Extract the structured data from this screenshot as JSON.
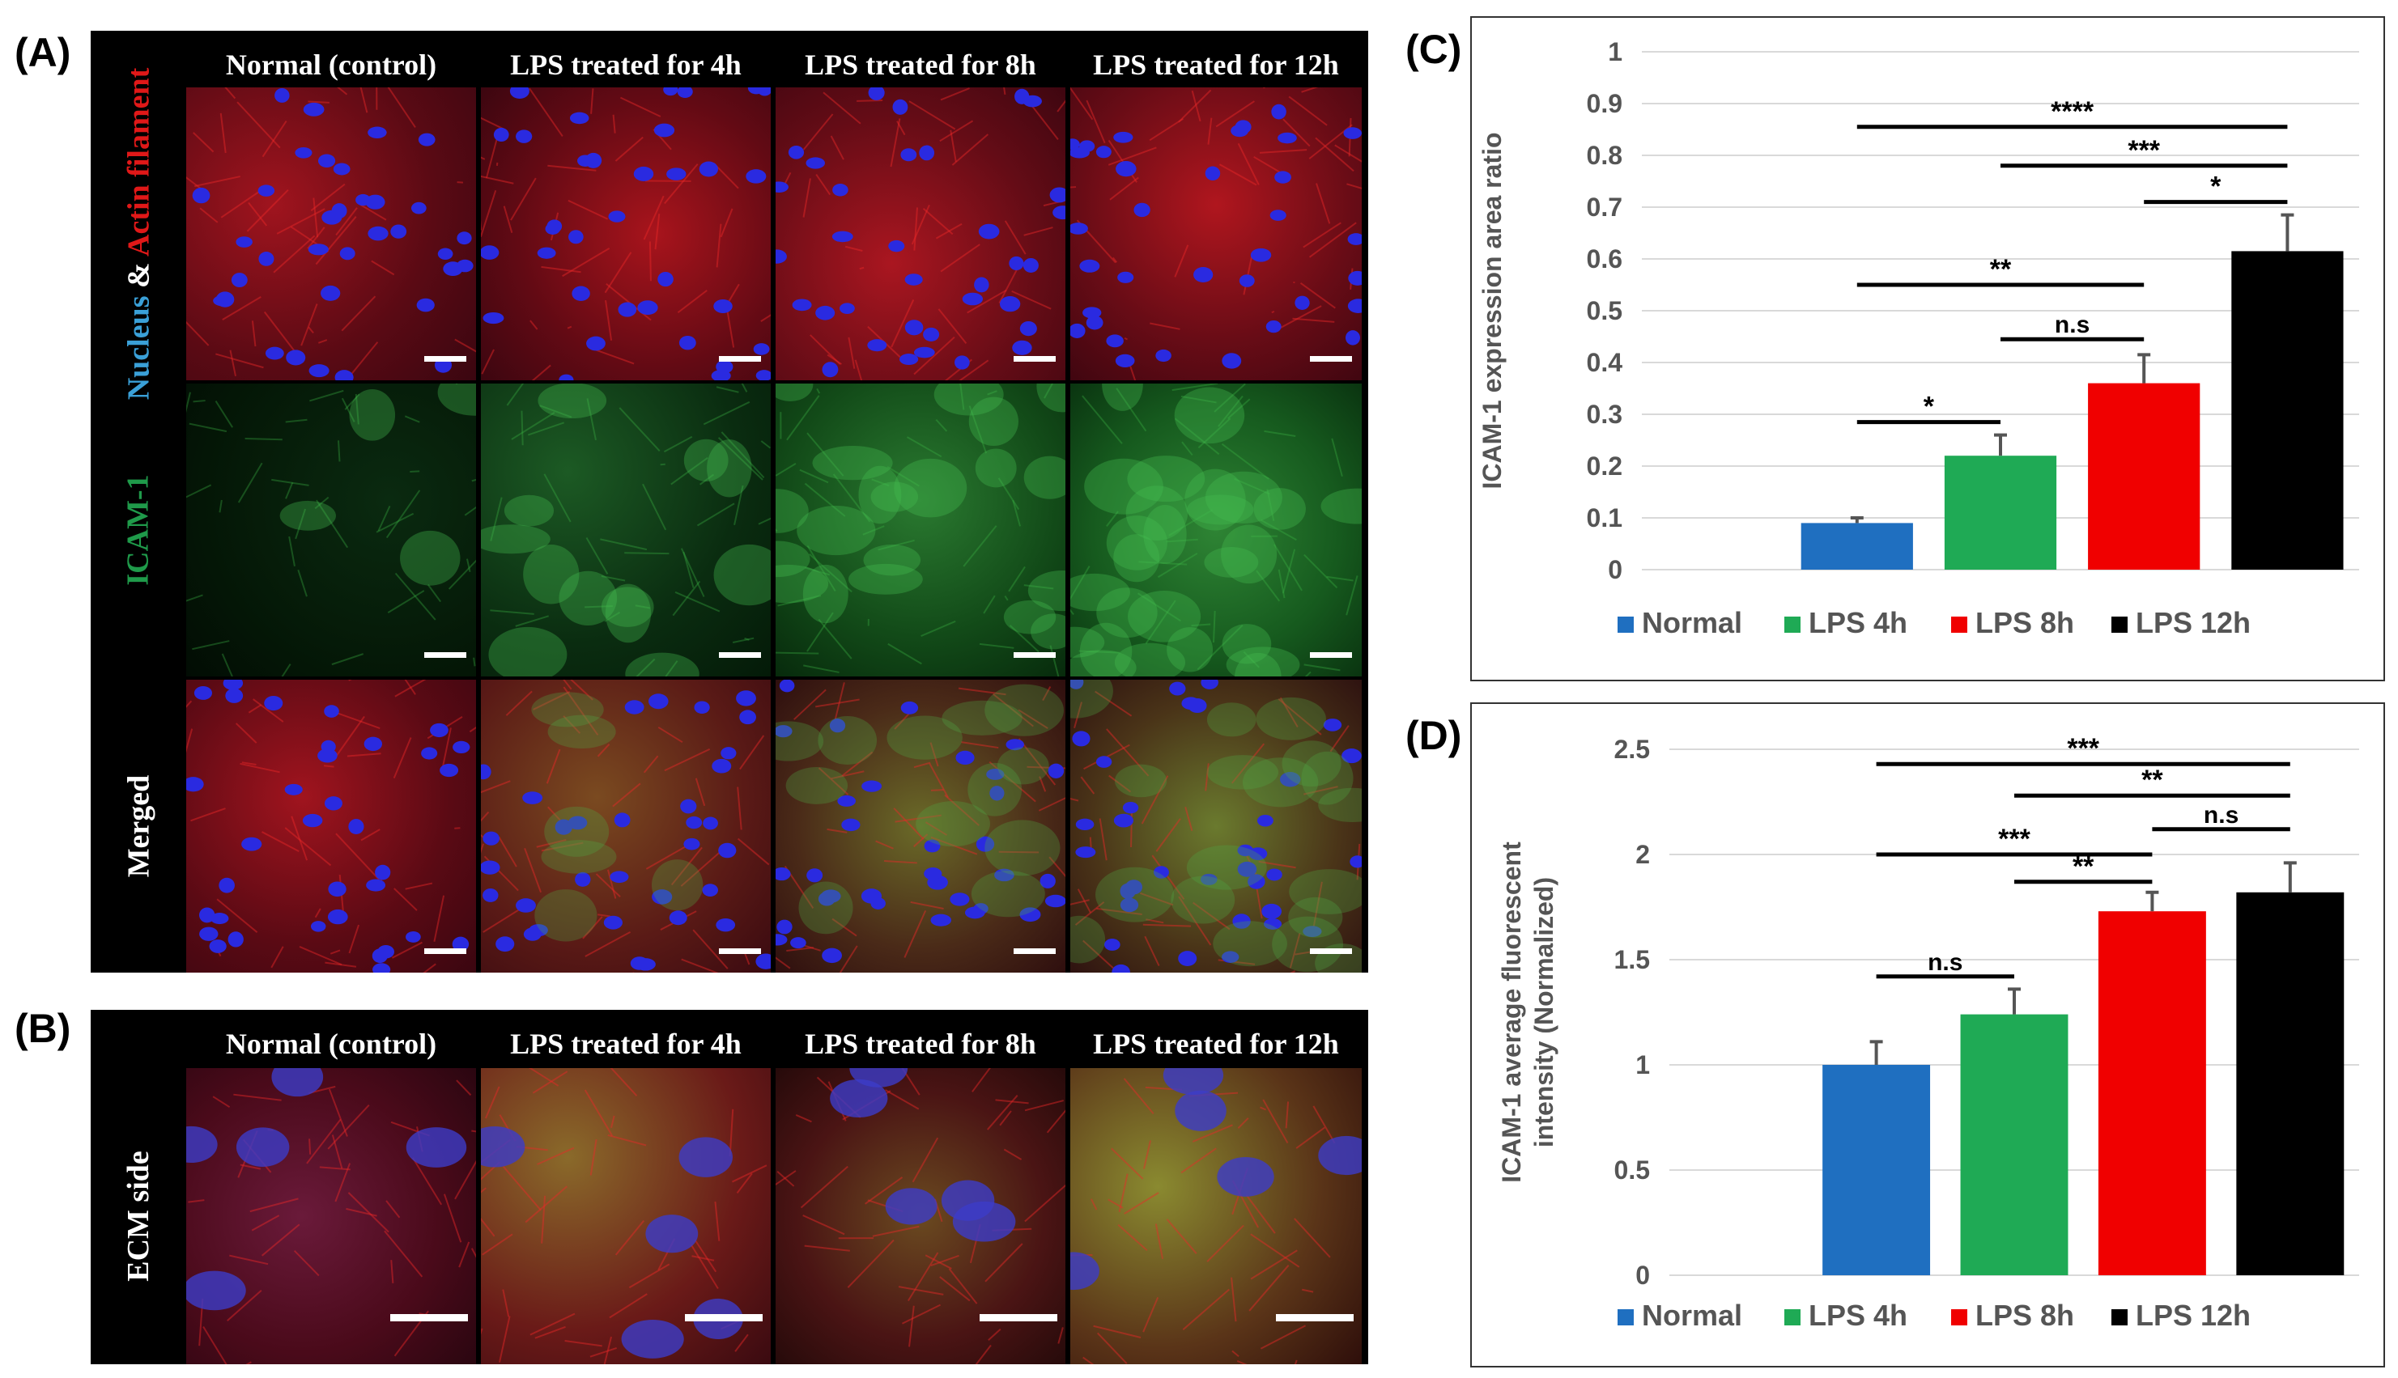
{
  "panels": {
    "A": {
      "letter": "(A)",
      "columns": [
        "Normal (control)",
        "LPS treated for 4h",
        "LPS treated for 8h",
        "LPS treated for 12h"
      ],
      "rows": [
        {
          "label_part1": "Nucleus",
          "label_part2": " & ",
          "label_part3": "Actin filament"
        },
        {
          "label": "ICAM-1"
        },
        {
          "label": "Merged"
        }
      ],
      "colors": {
        "nucleus": "#3aa0d8",
        "actin": "#e01818",
        "icam": "#1f9a4a",
        "white": "#ffffff"
      }
    },
    "B": {
      "letter": "(B)",
      "columns": [
        "Normal (control)",
        "LPS treated for 4h",
        "LPS treated for 8h",
        "LPS treated for 12h"
      ],
      "row_label": "ECM side"
    },
    "C": {
      "letter": "(C)"
    },
    "D": {
      "letter": "(D)"
    }
  },
  "chart_data": [
    {
      "type": "bar",
      "panel": "C",
      "ylabel": "ICAM-1 expression area ratio",
      "xlabel": "",
      "ylim": [
        0,
        1
      ],
      "yticks": [
        "0",
        "0.1",
        "0.2",
        "0.3",
        "0.4",
        "0.5",
        "0.6",
        "0.7",
        "0.8",
        "0.9",
        "1"
      ],
      "ytick_values": [
        0,
        0.1,
        0.2,
        0.3,
        0.4,
        0.5,
        0.6,
        0.7,
        0.8,
        0.9,
        1
      ],
      "grid": true,
      "legend_position": "bottom",
      "series": [
        {
          "name": "Normal",
          "value": 0.09,
          "error": 0.01,
          "color": "#1f6fc0"
        },
        {
          "name": "LPS 4h",
          "value": 0.22,
          "error": 0.04,
          "color": "#1faa55"
        },
        {
          "name": "LPS 8h",
          "value": 0.36,
          "error": 0.055,
          "color": "#f00000"
        },
        {
          "name": "LPS 12h",
          "value": 0.615,
          "error": 0.07,
          "color": "#000000"
        }
      ],
      "significance": [
        {
          "from": 0,
          "to": 3,
          "label": "****",
          "level": 0.855
        },
        {
          "from": 1,
          "to": 3,
          "label": "***",
          "level": 0.78
        },
        {
          "from": 2,
          "to": 3,
          "label": "*",
          "level": 0.71
        },
        {
          "from": 0,
          "to": 2,
          "label": "**",
          "level": 0.55
        },
        {
          "from": 1,
          "to": 2,
          "label": "n.s",
          "level": 0.445
        },
        {
          "from": 0,
          "to": 1,
          "label": "*",
          "level": 0.285
        }
      ]
    },
    {
      "type": "bar",
      "panel": "D",
      "ylabel": "ICAM-1 average fluorescent intensity (Normalized)",
      "ylabel_line1": "ICAM-1 average fluorescent",
      "ylabel_line2": "intensity (Normalized)",
      "xlabel": "",
      "ylim": [
        0,
        2.5
      ],
      "yticks": [
        "0",
        "0.5",
        "1",
        "1.5",
        "2",
        "2.5"
      ],
      "ytick_values": [
        0,
        0.5,
        1,
        1.5,
        2,
        2.5
      ],
      "grid": true,
      "legend_position": "bottom",
      "series": [
        {
          "name": "Normal",
          "value": 1.0,
          "error": 0.11,
          "color": "#1f6fc0"
        },
        {
          "name": "LPS 4h",
          "value": 1.24,
          "error": 0.12,
          "color": "#1faa55"
        },
        {
          "name": "LPS 8h",
          "value": 1.73,
          "error": 0.09,
          "color": "#f00000"
        },
        {
          "name": "LPS 12h",
          "value": 1.82,
          "error": 0.14,
          "color": "#000000"
        }
      ],
      "significance": [
        {
          "from": 0,
          "to": 3,
          "label": "***",
          "level": 2.43
        },
        {
          "from": 1,
          "to": 3,
          "label": "**",
          "level": 2.28
        },
        {
          "from": 2,
          "to": 3,
          "label": "n.s",
          "level": 2.12
        },
        {
          "from": 0,
          "to": 2,
          "label": "***",
          "level": 2.0
        },
        {
          "from": 1,
          "to": 2,
          "label": "**",
          "level": 1.87
        },
        {
          "from": 0,
          "to": 1,
          "label": "n.s",
          "level": 1.42
        }
      ]
    }
  ]
}
